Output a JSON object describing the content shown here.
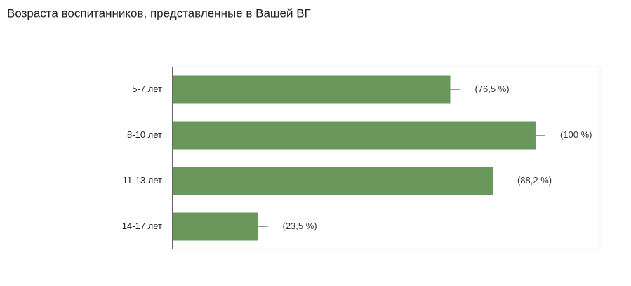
{
  "chart_data": {
    "type": "hbar",
    "title": "Возраста воспитанников, представленные в Вашей ВГ",
    "categories": [
      "5-7 лет",
      "8-10 лет",
      "11-13 лет",
      "14-17 лет"
    ],
    "values": [
      76.5,
      100,
      88.2,
      23.5
    ],
    "value_labels": [
      "(76,5 %)",
      "(100 %)",
      "(88,2 %)",
      "(23,5 %)"
    ],
    "color": "#6a975c",
    "xlim": [
      0,
      117.8
    ]
  }
}
